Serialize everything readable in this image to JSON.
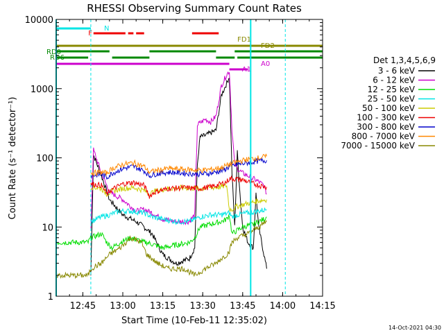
{
  "chart_data": {
    "type": "line",
    "title": "RHESSI Observing Summary Count Rates",
    "xlabel": "Start Time (10-Feb-11 12:35:02)",
    "ylabel": "Count Rate (s⁻¹ detector⁻¹)",
    "ylog": true,
    "ylim": [
      1,
      10000
    ],
    "xlim_minutes": [
      0,
      100
    ],
    "x_ticks": [
      "12:45",
      "13:00",
      "13:15",
      "13:30",
      "13:45",
      "14:00",
      "14:15"
    ],
    "y_ticks": [
      "1",
      "10",
      "100",
      "1000",
      "10000"
    ],
    "legend_title": "Det 1,3,4,5,6,9",
    "legend_position": "right",
    "timestamp": "14-Oct-2021 04:30",
    "series": [
      {
        "name": "3 - 6 keV",
        "color": "#000000",
        "points": [
          [
            13,
            2
          ],
          [
            14,
            110
          ],
          [
            17,
            55
          ],
          [
            20,
            25
          ],
          [
            25,
            15
          ],
          [
            30,
            12
          ],
          [
            33,
            10
          ],
          [
            36,
            8
          ],
          [
            40,
            4
          ],
          [
            45,
            3
          ],
          [
            50,
            3.5
          ],
          [
            52,
            5
          ],
          [
            53,
            80
          ],
          [
            54,
            200
          ],
          [
            56,
            210
          ],
          [
            58,
            230
          ],
          [
            60,
            250
          ],
          [
            62,
            800
          ],
          [
            64,
            1200
          ],
          [
            65,
            1500
          ],
          [
            66,
            60
          ],
          [
            67,
            10
          ],
          [
            68,
            120
          ],
          [
            69,
            30
          ],
          [
            70,
            10
          ],
          [
            72,
            6
          ],
          [
            74,
            5
          ],
          [
            75,
            30
          ],
          [
            76,
            10
          ],
          [
            78,
            4
          ],
          [
            79,
            2.5
          ]
        ]
      },
      {
        "name": "6 - 12 keV",
        "color": "#cc00cc",
        "points": [
          [
            13,
            10
          ],
          [
            14,
            130
          ],
          [
            17,
            60
          ],
          [
            20,
            32
          ],
          [
            25,
            25
          ],
          [
            30,
            17
          ],
          [
            33,
            18
          ],
          [
            36,
            16
          ],
          [
            40,
            13
          ],
          [
            45,
            12
          ],
          [
            50,
            12
          ],
          [
            52,
            15
          ],
          [
            53,
            300
          ],
          [
            56,
            360
          ],
          [
            58,
            330
          ],
          [
            60,
            400
          ],
          [
            62,
            1100
          ],
          [
            64,
            1600
          ],
          [
            65,
            1800
          ],
          [
            66,
            250
          ],
          [
            67,
            80
          ],
          [
            68,
            70
          ],
          [
            70,
            60
          ],
          [
            72,
            55
          ],
          [
            74,
            50
          ],
          [
            76,
            45
          ],
          [
            78,
            40
          ],
          [
            79,
            30
          ]
        ]
      },
      {
        "name": "12 - 25 keV",
        "color": "#00dd00",
        "points": [
          [
            0,
            6
          ],
          [
            12,
            6
          ],
          [
            13,
            7
          ],
          [
            17,
            8
          ],
          [
            19,
            6
          ],
          [
            21,
            5
          ],
          [
            24,
            6
          ],
          [
            28,
            7
          ],
          [
            33,
            6
          ],
          [
            34,
            6
          ],
          [
            40,
            5
          ],
          [
            45,
            5.5
          ],
          [
            50,
            6
          ],
          [
            52,
            7
          ],
          [
            54,
            10
          ],
          [
            58,
            11
          ],
          [
            62,
            12
          ],
          [
            64,
            13
          ],
          [
            65,
            15
          ],
          [
            66,
            8
          ],
          [
            68,
            9
          ],
          [
            70,
            10
          ],
          [
            74,
            11
          ],
          [
            76,
            12
          ],
          [
            78,
            13
          ],
          [
            79,
            14
          ]
        ]
      },
      {
        "name": "25 - 50 keV",
        "color": "#00e5e5",
        "points": [
          [
            13,
            12
          ],
          [
            17,
            14
          ],
          [
            20,
            15
          ],
          [
            24,
            17
          ],
          [
            28,
            17
          ],
          [
            33,
            16
          ],
          [
            36,
            14
          ],
          [
            40,
            13
          ],
          [
            45,
            12
          ],
          [
            50,
            12
          ],
          [
            54,
            14
          ],
          [
            58,
            15
          ],
          [
            62,
            15
          ],
          [
            65,
            16
          ],
          [
            66,
            14
          ],
          [
            68,
            15
          ],
          [
            72,
            16
          ],
          [
            76,
            17
          ],
          [
            79,
            18
          ]
        ]
      },
      {
        "name": "50 - 100 keV",
        "color": "#cccc00",
        "points": [
          [
            13,
            38
          ],
          [
            17,
            36
          ],
          [
            19,
            30
          ],
          [
            21,
            33
          ],
          [
            25,
            36
          ],
          [
            29,
            37
          ],
          [
            33,
            34
          ],
          [
            35,
            30
          ],
          [
            37,
            33
          ],
          [
            42,
            36
          ],
          [
            48,
            37
          ],
          [
            54,
            36
          ],
          [
            58,
            37
          ],
          [
            62,
            38
          ],
          [
            64,
            40
          ],
          [
            65,
            18
          ],
          [
            66,
            18
          ],
          [
            68,
            20
          ],
          [
            72,
            22
          ],
          [
            76,
            24
          ],
          [
            79,
            25
          ]
        ]
      },
      {
        "name": "100 - 300 keV",
        "color": "#ee0000",
        "points": [
          [
            13,
            42
          ],
          [
            17,
            40
          ],
          [
            19,
            30
          ],
          [
            21,
            35
          ],
          [
            25,
            42
          ],
          [
            29,
            44
          ],
          [
            33,
            40
          ],
          [
            35,
            28
          ],
          [
            37,
            32
          ],
          [
            42,
            36
          ],
          [
            48,
            37
          ],
          [
            54,
            36
          ],
          [
            58,
            38
          ],
          [
            62,
            42
          ],
          [
            64,
            45
          ],
          [
            65,
            50
          ],
          [
            66,
            50
          ],
          [
            70,
            48
          ],
          [
            72,
            45
          ],
          [
            76,
            40
          ],
          [
            79,
            38
          ]
        ]
      },
      {
        "name": "300 - 800 keV",
        "color": "#0000cc",
        "points": [
          [
            13,
            55
          ],
          [
            17,
            58
          ],
          [
            19,
            52
          ],
          [
            21,
            60
          ],
          [
            25,
            70
          ],
          [
            29,
            75
          ],
          [
            33,
            65
          ],
          [
            35,
            55
          ],
          [
            37,
            58
          ],
          [
            42,
            62
          ],
          [
            48,
            60
          ],
          [
            54,
            58
          ],
          [
            58,
            60
          ],
          [
            62,
            65
          ],
          [
            64,
            70
          ],
          [
            65,
            75
          ],
          [
            68,
            80
          ],
          [
            72,
            85
          ],
          [
            76,
            90
          ],
          [
            79,
            92
          ]
        ]
      },
      {
        "name": "800 - 7000 keV",
        "color": "#ff8800",
        "points": [
          [
            13,
            60
          ],
          [
            17,
            62
          ],
          [
            19,
            60
          ],
          [
            21,
            70
          ],
          [
            25,
            80
          ],
          [
            29,
            85
          ],
          [
            33,
            75
          ],
          [
            35,
            62
          ],
          [
            37,
            65
          ],
          [
            42,
            70
          ],
          [
            48,
            68
          ],
          [
            54,
            66
          ],
          [
            58,
            68
          ],
          [
            62,
            72
          ],
          [
            64,
            78
          ],
          [
            65,
            80
          ],
          [
            68,
            88
          ],
          [
            72,
            95
          ],
          [
            76,
            100
          ],
          [
            79,
            105
          ]
        ]
      },
      {
        "name": "7000 - 15000 keV",
        "color": "#888800",
        "points": [
          [
            0,
            2
          ],
          [
            12,
            2
          ],
          [
            13,
            2.5
          ],
          [
            17,
            3
          ],
          [
            20,
            4
          ],
          [
            24,
            5
          ],
          [
            28,
            7
          ],
          [
            32,
            6
          ],
          [
            34,
            4
          ],
          [
            38,
            3
          ],
          [
            42,
            2.5
          ],
          [
            48,
            2.5
          ],
          [
            52,
            2
          ],
          [
            56,
            2.5
          ],
          [
            60,
            3
          ],
          [
            62,
            3.5
          ],
          [
            64,
            4
          ],
          [
            65,
            4.5
          ],
          [
            66,
            6
          ],
          [
            68,
            7
          ],
          [
            72,
            8
          ],
          [
            76,
            10
          ],
          [
            79,
            12
          ]
        ]
      }
    ],
    "status_bars": [
      {
        "label": "N",
        "color": "#00e5e5",
        "segments": [
          [
            0,
            13
          ]
        ]
      },
      {
        "label": "F",
        "color": "#ee0000",
        "segments": [
          [
            14,
            26
          ],
          [
            27,
            29
          ],
          [
            30,
            33
          ],
          [
            51,
            61
          ]
        ]
      },
      {
        "label": "FD1",
        "color": "#888800",
        "segments": [
          [
            0,
            100
          ]
        ]
      },
      {
        "label": "FD2",
        "color": "#888800",
        "segments": [
          [
            61,
            67
          ]
        ]
      },
      {
        "label": "RD0",
        "color": "#008800",
        "segments": [
          [
            0,
            20
          ],
          [
            35,
            60
          ],
          [
            67,
            100
          ]
        ]
      },
      {
        "label": "RD6",
        "color": "#008800",
        "segments": [
          [
            0,
            12
          ],
          [
            21,
            35
          ],
          [
            60,
            67
          ],
          [
            68,
            100
          ]
        ]
      },
      {
        "label": "A1",
        "color": "#cc00cc",
        "segments": [
          [
            0,
            65
          ]
        ]
      },
      {
        "label": "A0",
        "color": "#cc00cc",
        "segments": [
          [
            65,
            72
          ]
        ]
      }
    ],
    "vlines_cyan_solid": [
      0,
      73
    ],
    "vlines_cyan_dashed": [
      13,
      86
    ]
  }
}
